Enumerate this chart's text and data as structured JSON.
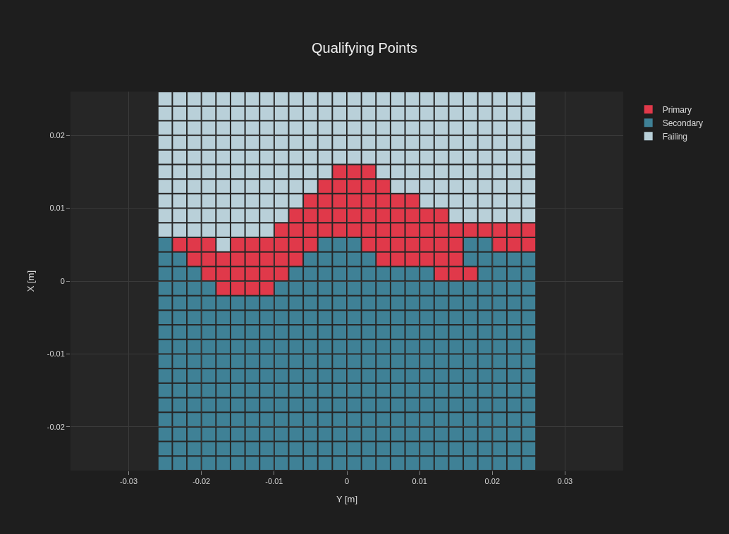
{
  "chart_data": {
    "type": "scatter",
    "title": "Qualifying Points",
    "xlabel": "Y [m]",
    "ylabel": "X [m]",
    "marker": "square",
    "legend": "right",
    "xlim": [
      -0.038,
      0.038
    ],
    "ylim": [
      -0.026,
      0.026
    ],
    "xticks": [
      -0.03,
      -0.02,
      -0.01,
      0,
      0.01,
      0.02,
      0.03
    ],
    "yticks": [
      -0.02,
      -0.01,
      0,
      0.01,
      0.02
    ],
    "grid": true,
    "series": [
      {
        "name": "Primary",
        "color": "#e0394a",
        "x": [
          -0.001,
          0.001,
          0.003,
          -0.003,
          -0.001,
          0.001,
          0.003,
          0.005,
          -0.005,
          -0.003,
          -0.001,
          0.001,
          0.003,
          0.005,
          0.007,
          0.009,
          -0.007,
          -0.005,
          -0.003,
          -0.001,
          0.001,
          0.003,
          0.005,
          0.007,
          0.009,
          0.011,
          0.013,
          -0.009,
          -0.007,
          -0.005,
          -0.003,
          -0.001,
          0.001,
          0.003,
          0.005,
          0.007,
          0.009,
          0.011,
          0.013,
          0.015,
          0.017,
          0.019,
          0.021,
          0.023,
          0.025,
          -0.023,
          -0.021,
          -0.019,
          -0.015,
          -0.013,
          -0.011,
          -0.009,
          -0.007,
          -0.005,
          0.003,
          0.005,
          0.007,
          0.009,
          0.011,
          0.013,
          0.015,
          0.021,
          0.023,
          0.025,
          -0.021,
          -0.019,
          -0.017,
          -0.015,
          -0.013,
          -0.011,
          -0.009,
          -0.007,
          0.005,
          0.007,
          0.009,
          0.011,
          0.013,
          0.015,
          -0.019,
          -0.017,
          -0.015,
          -0.013,
          -0.011,
          -0.009,
          0.013,
          0.015,
          0.017,
          -0.017,
          -0.015,
          -0.013,
          -0.011
        ],
        "values": [
          0.015,
          0.015,
          0.015,
          0.013,
          0.013,
          0.013,
          0.013,
          0.013,
          0.011,
          0.011,
          0.011,
          0.011,
          0.011,
          0.011,
          0.011,
          0.011,
          0.009,
          0.009,
          0.009,
          0.009,
          0.009,
          0.009,
          0.009,
          0.009,
          0.009,
          0.009,
          0.009,
          0.007,
          0.007,
          0.007,
          0.007,
          0.007,
          0.007,
          0.007,
          0.007,
          0.007,
          0.007,
          0.007,
          0.007,
          0.007,
          0.007,
          0.007,
          0.007,
          0.007,
          0.007,
          0.005,
          0.005,
          0.005,
          0.005,
          0.005,
          0.005,
          0.005,
          0.005,
          0.005,
          0.005,
          0.005,
          0.005,
          0.005,
          0.005,
          0.005,
          0.005,
          0.005,
          0.005,
          0.005,
          0.003,
          0.003,
          0.003,
          0.003,
          0.003,
          0.003,
          0.003,
          0.003,
          0.003,
          0.003,
          0.003,
          0.003,
          0.003,
          0.003,
          0.001,
          0.001,
          0.001,
          0.001,
          0.001,
          0.001,
          0.001,
          0.001,
          0.001,
          -0.001,
          -0.001,
          -0.001,
          -0.001
        ]
      },
      {
        "name": "Secondary",
        "color": "#3f8196",
        "x": [
          -0.025,
          -0.003,
          -0.001,
          0.001,
          0.017,
          0.019,
          -0.025,
          -0.023,
          -0.005,
          -0.003,
          -0.001,
          0.001,
          0.003,
          0.017,
          0.019,
          0.021,
          0.023,
          0.025,
          -0.025,
          -0.023,
          -0.021,
          -0.007,
          -0.005,
          -0.003,
          -0.001,
          0.001,
          0.003,
          0.005,
          0.007,
          0.009,
          0.011,
          0.019,
          0.021,
          0.023,
          0.025,
          -0.025,
          -0.023,
          -0.021,
          -0.019,
          -0.009,
          -0.007,
          -0.005,
          -0.003,
          -0.001,
          0.001,
          0.003,
          0.005,
          0.007,
          0.009,
          0.011,
          0.013,
          0.015,
          0.017,
          0.019,
          0.021,
          0.023,
          0.025,
          -0.025,
          -0.023,
          -0.021,
          -0.019,
          -0.017,
          -0.015,
          -0.013,
          -0.011,
          -0.009,
          -0.007,
          -0.005,
          -0.003,
          -0.001,
          0.001,
          0.003,
          0.005,
          0.007,
          0.009,
          0.011,
          0.013,
          0.015,
          0.017,
          0.019,
          0.021,
          0.023,
          0.025,
          -0.025,
          -0.023,
          -0.021,
          -0.019,
          -0.017,
          -0.015,
          -0.013,
          -0.011,
          -0.009,
          -0.007,
          -0.005,
          -0.003,
          -0.001,
          0.001,
          0.003,
          0.005,
          0.007,
          0.009,
          0.011,
          0.013,
          0.015,
          0.017,
          0.019,
          0.021,
          0.023,
          0.025,
          -0.025,
          -0.023,
          -0.021,
          -0.019,
          -0.017,
          -0.015,
          -0.013,
          -0.011,
          -0.009,
          -0.007,
          -0.005,
          -0.003,
          -0.001,
          0.001,
          0.003,
          0.005,
          0.007,
          0.009,
          0.011,
          0.013,
          0.015,
          0.017,
          0.019,
          0.021,
          0.023,
          0.025,
          -0.025,
          -0.023,
          -0.021,
          -0.019,
          -0.017,
          -0.015,
          -0.013,
          -0.011,
          -0.009,
          -0.007,
          -0.005,
          -0.003,
          -0.001,
          0.001,
          0.003,
          0.005,
          0.007,
          0.009,
          0.011,
          0.013,
          0.015,
          0.017,
          0.019,
          0.021,
          0.023,
          0.025,
          -0.025,
          -0.023,
          -0.021,
          -0.019,
          -0.017,
          -0.015,
          -0.013,
          -0.011,
          -0.009,
          -0.007,
          -0.005,
          -0.003,
          -0.001,
          0.001,
          0.003,
          0.005,
          0.007,
          0.009,
          0.011,
          0.013,
          0.015,
          0.017,
          0.019,
          0.021,
          0.023,
          0.025,
          -0.025,
          -0.023,
          -0.021,
          -0.019,
          -0.017,
          -0.015,
          -0.013,
          -0.011,
          -0.009,
          -0.007,
          -0.005,
          -0.003,
          -0.001,
          0.001,
          0.003,
          0.005,
          0.007,
          0.009,
          0.011,
          0.013,
          0.015,
          0.017,
          0.019,
          0.021,
          0.023,
          0.025,
          -0.025,
          -0.023,
          -0.021,
          -0.019,
          -0.017,
          -0.015,
          -0.013,
          -0.011,
          -0.009,
          -0.007,
          -0.005,
          -0.003,
          -0.001,
          0.001,
          0.003,
          0.005,
          0.007,
          0.009,
          0.011,
          0.013,
          0.015,
          0.017,
          0.019,
          0.021,
          0.023,
          0.025,
          -0.025,
          -0.023,
          -0.021,
          -0.019,
          -0.017,
          -0.015,
          -0.013,
          -0.011,
          -0.009,
          -0.007,
          -0.005,
          -0.003,
          -0.001,
          0.001,
          0.003,
          0.005,
          0.007,
          0.009,
          0.011,
          0.013,
          0.015,
          0.017,
          0.019,
          0.021,
          0.023,
          0.025,
          -0.025,
          -0.023,
          -0.021,
          -0.019,
          -0.017,
          -0.015,
          -0.013,
          -0.011,
          -0.009,
          -0.007,
          -0.005,
          -0.003,
          -0.001,
          0.001,
          0.003,
          0.005,
          0.007,
          0.009,
          0.011,
          0.013,
          0.015,
          0.017,
          0.019,
          0.021,
          0.023,
          0.025,
          -0.025,
          -0.023,
          -0.021,
          -0.019,
          -0.017,
          -0.015,
          -0.013,
          -0.011,
          -0.009,
          -0.007,
          -0.005,
          -0.003,
          -0.001,
          0.001,
          0.003,
          0.005,
          0.007,
          0.009,
          0.011,
          0.013,
          0.015,
          0.017,
          0.019,
          0.021,
          0.023,
          0.025,
          -0.025,
          -0.023,
          -0.021,
          -0.019,
          -0.017,
          -0.015,
          -0.013,
          -0.011,
          -0.009,
          -0.007,
          -0.005,
          -0.003,
          -0.001,
          0.001,
          0.003,
          0.005,
          0.007,
          0.009,
          0.011,
          0.013,
          0.015,
          0.017,
          0.019,
          0.021,
          0.023,
          0.025,
          -0.025,
          -0.023,
          -0.021,
          -0.019,
          -0.017,
          -0.015,
          -0.013,
          -0.011,
          -0.009,
          -0.007,
          -0.005,
          -0.003,
          -0.001,
          0.001,
          0.003,
          0.005,
          0.007,
          0.009,
          0.011,
          0.013,
          0.015,
          0.017,
          0.019,
          0.021,
          0.023,
          0.025
        ],
        "values": [
          0.005,
          0.005,
          0.005,
          0.005,
          0.005,
          0.005,
          0.003,
          0.003,
          0.003,
          0.003,
          0.003,
          0.003,
          0.003,
          0.003,
          0.003,
          0.003,
          0.003,
          0.003,
          0.001,
          0.001,
          0.001,
          0.001,
          0.001,
          0.001,
          0.001,
          0.001,
          0.001,
          0.001,
          0.001,
          0.001,
          0.001,
          0.001,
          0.001,
          0.001,
          0.001,
          -0.001,
          -0.001,
          -0.001,
          -0.001,
          -0.001,
          -0.001,
          -0.001,
          -0.001,
          -0.001,
          -0.001,
          -0.001,
          -0.001,
          -0.001,
          -0.001,
          -0.001,
          -0.001,
          -0.001,
          -0.001,
          -0.001,
          -0.001,
          -0.001,
          -0.001,
          -0.003,
          -0.003,
          -0.003,
          -0.003,
          -0.003,
          -0.003,
          -0.003,
          -0.003,
          -0.003,
          -0.003,
          -0.003,
          -0.003,
          -0.003,
          -0.003,
          -0.003,
          -0.003,
          -0.003,
          -0.003,
          -0.003,
          -0.003,
          -0.003,
          -0.003,
          -0.003,
          -0.003,
          -0.003,
          -0.003,
          -0.005,
          -0.005,
          -0.005,
          -0.005,
          -0.005,
          -0.005,
          -0.005,
          -0.005,
          -0.005,
          -0.005,
          -0.005,
          -0.005,
          -0.005,
          -0.005,
          -0.005,
          -0.005,
          -0.005,
          -0.005,
          -0.005,
          -0.005,
          -0.005,
          -0.005,
          -0.005,
          -0.005,
          -0.005,
          -0.005,
          -0.007,
          -0.007,
          -0.007,
          -0.007,
          -0.007,
          -0.007,
          -0.007,
          -0.007,
          -0.007,
          -0.007,
          -0.007,
          -0.007,
          -0.007,
          -0.007,
          -0.007,
          -0.007,
          -0.007,
          -0.007,
          -0.007,
          -0.007,
          -0.007,
          -0.007,
          -0.007,
          -0.007,
          -0.007,
          -0.007,
          -0.009,
          -0.009,
          -0.009,
          -0.009,
          -0.009,
          -0.009,
          -0.009,
          -0.009,
          -0.009,
          -0.009,
          -0.009,
          -0.009,
          -0.009,
          -0.009,
          -0.009,
          -0.009,
          -0.009,
          -0.009,
          -0.009,
          -0.009,
          -0.009,
          -0.009,
          -0.009,
          -0.009,
          -0.009,
          -0.009,
          -0.011,
          -0.011,
          -0.011,
          -0.011,
          -0.011,
          -0.011,
          -0.011,
          -0.011,
          -0.011,
          -0.011,
          -0.011,
          -0.011,
          -0.011,
          -0.011,
          -0.011,
          -0.011,
          -0.011,
          -0.011,
          -0.011,
          -0.011,
          -0.011,
          -0.011,
          -0.011,
          -0.011,
          -0.011,
          -0.011,
          -0.013,
          -0.013,
          -0.013,
          -0.013,
          -0.013,
          -0.013,
          -0.013,
          -0.013,
          -0.013,
          -0.013,
          -0.013,
          -0.013,
          -0.013,
          -0.013,
          -0.013,
          -0.013,
          -0.013,
          -0.013,
          -0.013,
          -0.013,
          -0.013,
          -0.013,
          -0.013,
          -0.013,
          -0.013,
          -0.013,
          -0.015,
          -0.015,
          -0.015,
          -0.015,
          -0.015,
          -0.015,
          -0.015,
          -0.015,
          -0.015,
          -0.015,
          -0.015,
          -0.015,
          -0.015,
          -0.015,
          -0.015,
          -0.015,
          -0.015,
          -0.015,
          -0.015,
          -0.015,
          -0.015,
          -0.015,
          -0.015,
          -0.015,
          -0.015,
          -0.015,
          -0.017,
          -0.017,
          -0.017,
          -0.017,
          -0.017,
          -0.017,
          -0.017,
          -0.017,
          -0.017,
          -0.017,
          -0.017,
          -0.017,
          -0.017,
          -0.017,
          -0.017,
          -0.017,
          -0.017,
          -0.017,
          -0.017,
          -0.017,
          -0.017,
          -0.017,
          -0.017,
          -0.017,
          -0.017,
          -0.017,
          -0.019,
          -0.019,
          -0.019,
          -0.019,
          -0.019,
          -0.019,
          -0.019,
          -0.019,
          -0.019,
          -0.019,
          -0.019,
          -0.019,
          -0.019,
          -0.019,
          -0.019,
          -0.019,
          -0.019,
          -0.019,
          -0.019,
          -0.019,
          -0.019,
          -0.019,
          -0.019,
          -0.019,
          -0.019,
          -0.019,
          -0.021,
          -0.021,
          -0.021,
          -0.021,
          -0.021,
          -0.021,
          -0.021,
          -0.021,
          -0.021,
          -0.021,
          -0.021,
          -0.021,
          -0.021,
          -0.021,
          -0.021,
          -0.021,
          -0.021,
          -0.021,
          -0.021,
          -0.021,
          -0.021,
          -0.021,
          -0.021,
          -0.021,
          -0.021,
          -0.021,
          -0.023,
          -0.023,
          -0.023,
          -0.023,
          -0.023,
          -0.023,
          -0.023,
          -0.023,
          -0.023,
          -0.023,
          -0.023,
          -0.023,
          -0.023,
          -0.023,
          -0.023,
          -0.023,
          -0.023,
          -0.023,
          -0.023,
          -0.023,
          -0.023,
          -0.023,
          -0.023,
          -0.023,
          -0.023,
          -0.023,
          -0.025,
          -0.025,
          -0.025,
          -0.025,
          -0.025,
          -0.025,
          -0.025,
          -0.025,
          -0.025,
          -0.025,
          -0.025,
          -0.025,
          -0.025,
          -0.025,
          -0.025,
          -0.025,
          -0.025,
          -0.025,
          -0.025,
          -0.025,
          -0.025,
          -0.025,
          -0.025,
          -0.025,
          -0.025,
          -0.025
        ]
      },
      {
        "name": "Failing",
        "color": "#b9d0d9",
        "x": [
          -0.025,
          -0.023,
          -0.021,
          -0.019,
          -0.017,
          -0.015,
          -0.013,
          -0.011,
          -0.009,
          -0.007,
          -0.005,
          -0.003,
          -0.001,
          0.001,
          0.003,
          0.005,
          0.007,
          0.009,
          0.011,
          0.013,
          0.015,
          0.017,
          0.019,
          0.021,
          0.023,
          0.025,
          -0.025,
          -0.023,
          -0.021,
          -0.019,
          -0.017,
          -0.015,
          -0.013,
          -0.011,
          -0.009,
          -0.007,
          -0.005,
          -0.003,
          -0.001,
          0.001,
          0.003,
          0.005,
          0.007,
          0.009,
          0.011,
          0.013,
          0.015,
          0.017,
          0.019,
          0.021,
          0.023,
          0.025,
          -0.025,
          -0.023,
          -0.021,
          -0.019,
          -0.017,
          -0.015,
          -0.013,
          -0.011,
          -0.009,
          -0.007,
          -0.005,
          -0.003,
          -0.001,
          0.001,
          0.003,
          0.005,
          0.007,
          0.009,
          0.011,
          0.013,
          0.015,
          0.017,
          0.019,
          0.021,
          0.023,
          0.025,
          -0.025,
          -0.023,
          -0.021,
          -0.019,
          -0.017,
          -0.015,
          -0.013,
          -0.011,
          -0.009,
          -0.007,
          -0.005,
          -0.003,
          -0.001,
          0.001,
          0.003,
          0.005,
          0.007,
          0.009,
          0.011,
          0.013,
          0.015,
          0.017,
          0.019,
          0.021,
          0.023,
          0.025,
          -0.025,
          -0.023,
          -0.021,
          -0.019,
          -0.017,
          -0.015,
          -0.013,
          -0.011,
          -0.009,
          -0.007,
          -0.005,
          -0.003,
          -0.001,
          0.001,
          0.003,
          0.005,
          0.007,
          0.009,
          0.011,
          0.013,
          0.015,
          0.017,
          0.019,
          0.021,
          0.023,
          0.025,
          -0.025,
          -0.023,
          -0.021,
          -0.019,
          -0.017,
          -0.015,
          -0.013,
          -0.011,
          -0.009,
          -0.007,
          -0.005,
          -0.003,
          0.005,
          0.007,
          0.009,
          0.011,
          0.013,
          0.015,
          0.017,
          0.019,
          0.021,
          0.023,
          0.025,
          -0.025,
          -0.023,
          -0.021,
          -0.019,
          -0.017,
          -0.015,
          -0.013,
          -0.011,
          -0.009,
          -0.007,
          -0.005,
          0.007,
          0.009,
          0.011,
          0.013,
          0.015,
          0.017,
          0.019,
          0.021,
          0.023,
          0.025,
          -0.025,
          -0.023,
          -0.021,
          -0.019,
          -0.017,
          -0.015,
          -0.013,
          -0.011,
          -0.009,
          -0.007,
          0.011,
          0.013,
          0.015,
          0.017,
          0.019,
          0.021,
          0.023,
          0.025,
          -0.025,
          -0.023,
          -0.021,
          -0.019,
          -0.017,
          -0.015,
          -0.013,
          -0.011,
          -0.009,
          0.015,
          0.017,
          0.019,
          0.021,
          0.023,
          0.025,
          -0.025,
          -0.023,
          -0.021,
          -0.019,
          -0.017,
          -0.015,
          -0.013,
          -0.011,
          -0.017
        ],
        "values": [
          0.025,
          0.025,
          0.025,
          0.025,
          0.025,
          0.025,
          0.025,
          0.025,
          0.025,
          0.025,
          0.025,
          0.025,
          0.025,
          0.025,
          0.025,
          0.025,
          0.025,
          0.025,
          0.025,
          0.025,
          0.025,
          0.025,
          0.025,
          0.025,
          0.025,
          0.025,
          0.023,
          0.023,
          0.023,
          0.023,
          0.023,
          0.023,
          0.023,
          0.023,
          0.023,
          0.023,
          0.023,
          0.023,
          0.023,
          0.023,
          0.023,
          0.023,
          0.023,
          0.023,
          0.023,
          0.023,
          0.023,
          0.023,
          0.023,
          0.023,
          0.023,
          0.023,
          0.021,
          0.021,
          0.021,
          0.021,
          0.021,
          0.021,
          0.021,
          0.021,
          0.021,
          0.021,
          0.021,
          0.021,
          0.021,
          0.021,
          0.021,
          0.021,
          0.021,
          0.021,
          0.021,
          0.021,
          0.021,
          0.021,
          0.021,
          0.021,
          0.021,
          0.021,
          0.019,
          0.019,
          0.019,
          0.019,
          0.019,
          0.019,
          0.019,
          0.019,
          0.019,
          0.019,
          0.019,
          0.019,
          0.019,
          0.019,
          0.019,
          0.019,
          0.019,
          0.019,
          0.019,
          0.019,
          0.019,
          0.019,
          0.019,
          0.019,
          0.019,
          0.019,
          0.017,
          0.017,
          0.017,
          0.017,
          0.017,
          0.017,
          0.017,
          0.017,
          0.017,
          0.017,
          0.017,
          0.017,
          0.017,
          0.017,
          0.017,
          0.017,
          0.017,
          0.017,
          0.017,
          0.017,
          0.017,
          0.017,
          0.017,
          0.017,
          0.017,
          0.017,
          0.015,
          0.015,
          0.015,
          0.015,
          0.015,
          0.015,
          0.015,
          0.015,
          0.015,
          0.015,
          0.015,
          0.015,
          0.015,
          0.015,
          0.015,
          0.015,
          0.015,
          0.015,
          0.015,
          0.015,
          0.015,
          0.015,
          0.015,
          0.013,
          0.013,
          0.013,
          0.013,
          0.013,
          0.013,
          0.013,
          0.013,
          0.013,
          0.013,
          0.013,
          0.013,
          0.013,
          0.013,
          0.013,
          0.013,
          0.013,
          0.013,
          0.013,
          0.013,
          0.013,
          0.011,
          0.011,
          0.011,
          0.011,
          0.011,
          0.011,
          0.011,
          0.011,
          0.011,
          0.011,
          0.011,
          0.011,
          0.011,
          0.011,
          0.011,
          0.011,
          0.011,
          0.011,
          0.009,
          0.009,
          0.009,
          0.009,
          0.009,
          0.009,
          0.009,
          0.009,
          0.009,
          0.009,
          0.009,
          0.009,
          0.009,
          0.009,
          0.009,
          0.007,
          0.007,
          0.007,
          0.007,
          0.007,
          0.007,
          0.007,
          0.007,
          0.005
        ]
      }
    ]
  }
}
